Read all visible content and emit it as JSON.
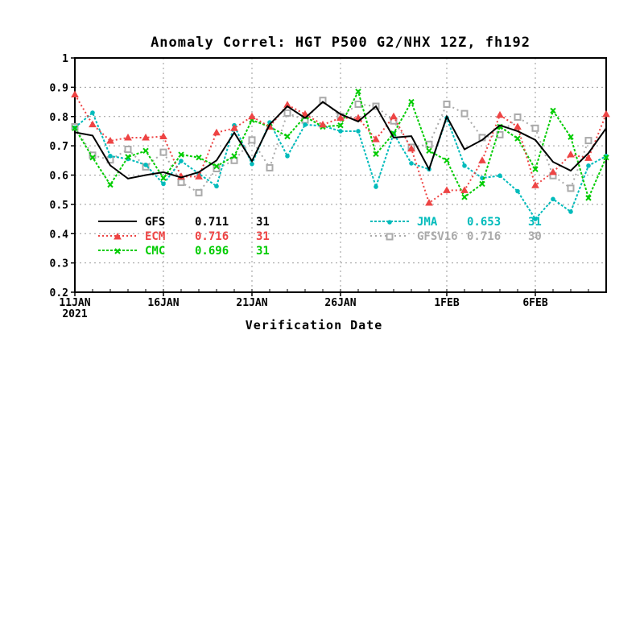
{
  "chart_data": {
    "type": "line",
    "title": "Anomaly Correl: HGT P500 G2/NHX 12Z, fh192",
    "xlabel": "Verification Date",
    "ylabel": "",
    "ylim": [
      0.2,
      1.0
    ],
    "yticks": [
      "0.2",
      "0.3",
      "0.4",
      "0.5",
      "0.6",
      "0.7",
      "0.8",
      "0.9",
      "1"
    ],
    "xlim": [
      0,
      30
    ],
    "xticks": [
      {
        "x": 0,
        "label": "11JAN",
        "sublabel": "2021"
      },
      {
        "x": 5,
        "label": "16JAN",
        "sublabel": ""
      },
      {
        "x": 10,
        "label": "21JAN",
        "sublabel": ""
      },
      {
        "x": 15,
        "label": "26JAN",
        "sublabel": ""
      },
      {
        "x": 21,
        "label": "1FEB",
        "sublabel": ""
      },
      {
        "x": 26,
        "label": "6FEB",
        "sublabel": ""
      }
    ],
    "grid": true,
    "series": [
      {
        "name": "GFS",
        "mean": "0.711",
        "count": "31",
        "color": "#000000",
        "dash": "",
        "marker": "none",
        "values": [
          0.746,
          0.735,
          0.633,
          0.588,
          0.6,
          0.61,
          0.592,
          0.61,
          0.65,
          0.745,
          0.648,
          0.773,
          0.835,
          0.795,
          0.85,
          0.808,
          0.783,
          0.835,
          0.728,
          0.733,
          0.62,
          0.8,
          0.688,
          0.72,
          0.77,
          0.75,
          0.72,
          0.645,
          0.615,
          0.675,
          0.76
        ]
      },
      {
        "name": "ECM",
        "mean": "0.716",
        "count": "31",
        "color": "#ee4444",
        "dash": "2,3",
        "marker": "triangle",
        "values": [
          0.875,
          0.773,
          0.717,
          0.728,
          0.728,
          0.732,
          0.595,
          0.595,
          0.745,
          0.76,
          0.8,
          0.765,
          0.84,
          0.808,
          0.772,
          0.795,
          0.795,
          0.722,
          0.8,
          0.69,
          0.505,
          0.548,
          0.548,
          0.65,
          0.805,
          0.765,
          0.565,
          0.61,
          0.67,
          0.658,
          0.808
        ]
      },
      {
        "name": "CMC",
        "mean": "0.696",
        "count": "31",
        "color": "#00cc00",
        "dash": "3,2",
        "marker": "x",
        "values": [
          0.76,
          0.66,
          0.567,
          0.662,
          0.683,
          0.59,
          0.67,
          0.66,
          0.63,
          0.665,
          0.788,
          0.765,
          0.732,
          0.8,
          0.765,
          0.77,
          0.885,
          0.672,
          0.742,
          0.85,
          0.683,
          0.65,
          0.525,
          0.57,
          0.765,
          0.725,
          0.62,
          0.82,
          0.73,
          0.522,
          0.66
        ]
      },
      {
        "name": "JMA",
        "mean": "0.653",
        "count": "31",
        "color": "#00bbbb",
        "dash": "3,2",
        "marker": "dot",
        "values": [
          0.762,
          0.813,
          0.665,
          0.655,
          0.635,
          0.57,
          0.648,
          0.605,
          0.562,
          0.77,
          0.638,
          0.78,
          0.665,
          0.772,
          0.768,
          0.75,
          0.75,
          0.56,
          0.742,
          0.64,
          0.62,
          0.795,
          0.632,
          0.59,
          0.598,
          0.545,
          0.45,
          0.518,
          0.475,
          0.632,
          0.665
        ]
      },
      {
        "name": "GFSV16",
        "mean": "0.716",
        "count": "30",
        "color": "#aaaaaa",
        "dash": "2,4",
        "marker": "square",
        "values": [
          0.765,
          0.668,
          0.652,
          0.688,
          0.628,
          0.678,
          0.575,
          0.54,
          0.622,
          0.65,
          0.72,
          0.625,
          0.812,
          0.788,
          0.855,
          0.8,
          0.842,
          0.835,
          0.785,
          0.695,
          0.705,
          0.842,
          0.81,
          0.728,
          0.738,
          0.798,
          0.76,
          0.598,
          0.555,
          0.718,
          null
        ]
      }
    ]
  }
}
